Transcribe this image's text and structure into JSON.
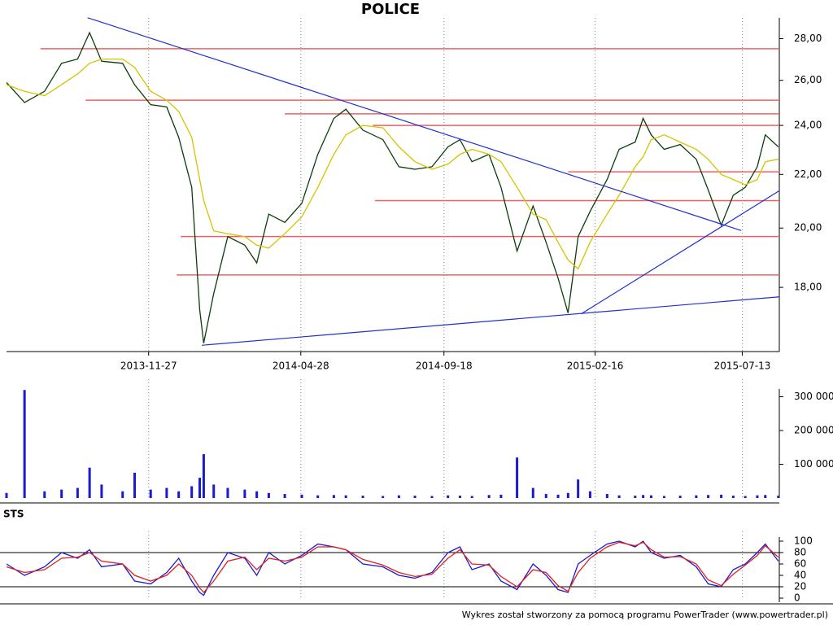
{
  "chart_data": [
    {
      "type": "line",
      "title": "POLICE",
      "log": true,
      "x": [
        "2013-07-08",
        "2013-07-26",
        "2013-08-15",
        "2013-09-01",
        "2013-09-17",
        "2013-09-29",
        "2013-10-11",
        "2013-11-01",
        "2013-11-13",
        "2013-11-29",
        "2013-12-15",
        "2013-12-27",
        "2014-01-09",
        "2014-01-17",
        "2014-01-21",
        "2014-01-31",
        "2014-02-14",
        "2014-03-03",
        "2014-03-15",
        "2014-03-27",
        "2014-04-12",
        "2014-04-29",
        "2014-05-15",
        "2014-05-31",
        "2014-06-12",
        "2014-06-29",
        "2014-07-19",
        "2014-08-04",
        "2014-08-20",
        "2014-09-06",
        "2014-09-22",
        "2014-10-04",
        "2014-10-16",
        "2014-11-02",
        "2014-11-14",
        "2014-11-30",
        "2014-12-16",
        "2014-12-29",
        "2015-01-10",
        "2015-01-20",
        "2015-01-30",
        "2015-02-11",
        "2015-02-28",
        "2015-03-12",
        "2015-03-28",
        "2015-04-05",
        "2015-04-13",
        "2015-04-26",
        "2015-05-12",
        "2015-05-28",
        "2015-06-09",
        "2015-06-22",
        "2015-07-04",
        "2015-07-16",
        "2015-07-28",
        "2015-08-05",
        "2015-08-18"
      ],
      "series": [
        {
          "color": "#0b3d0b",
          "values": [
            25.9,
            25.0,
            25.5,
            26.8,
            27.0,
            28.3,
            26.9,
            26.8,
            25.8,
            24.9,
            24.8,
            23.5,
            21.5,
            17.3,
            16.3,
            17.8,
            19.7,
            19.4,
            18.8,
            20.5,
            20.2,
            20.9,
            22.8,
            24.3,
            24.7,
            23.8,
            23.4,
            22.3,
            22.2,
            22.3,
            23.1,
            23.4,
            22.5,
            22.8,
            21.5,
            19.2,
            20.8,
            19.5,
            18.3,
            17.2,
            19.7,
            20.6,
            21.8,
            23.0,
            23.3,
            24.3,
            23.6,
            23.0,
            23.2,
            22.6,
            21.4,
            20.1,
            21.2,
            21.5,
            22.3,
            23.6,
            23.1
          ]
        },
        {
          "color": "#d4c400",
          "values": [
            25.8,
            25.5,
            25.3,
            25.8,
            26.3,
            26.8,
            27.0,
            27.0,
            26.6,
            25.5,
            25.1,
            24.6,
            23.5,
            21.8,
            21.0,
            19.9,
            19.8,
            19.7,
            19.4,
            19.3,
            19.8,
            20.4,
            21.5,
            22.8,
            23.6,
            24.0,
            23.9,
            23.1,
            22.5,
            22.2,
            22.4,
            22.8,
            23.0,
            22.8,
            22.5,
            21.5,
            20.5,
            20.3,
            19.5,
            18.9,
            18.6,
            19.5,
            20.5,
            21.2,
            22.3,
            22.7,
            23.4,
            23.6,
            23.3,
            23.0,
            22.6,
            22.0,
            21.8,
            21.6,
            21.8,
            22.5,
            22.6
          ]
        }
      ],
      "xlim": [
        "2013-07-08",
        "2015-08-19"
      ],
      "xticks": [
        "2013-11-27",
        "2014-04-28",
        "2014-09-18",
        "2015-02-16",
        "2015-07-13"
      ],
      "ylim": [
        16.06,
        29.05
      ],
      "yticks": [
        {
          "value": 18,
          "label": "18,00"
        },
        {
          "value": 20,
          "label": "20,00"
        },
        {
          "value": 22,
          "label": "22,00"
        },
        {
          "value": 24,
          "label": "24,00"
        },
        {
          "value": 26,
          "label": "26,00"
        },
        {
          "value": 28,
          "label": "28,00"
        }
      ],
      "hline_color": "#f06060",
      "hlines": [
        {
          "value": 27.5,
          "from": "2013-08-11"
        },
        {
          "value": 25.1,
          "from": "2013-09-25"
        },
        {
          "value": 24.5,
          "from": "2014-04-12"
        },
        {
          "value": 24.0,
          "from": "2014-07-09"
        },
        {
          "value": 22.1,
          "from": "2015-01-20"
        },
        {
          "value": 21.0,
          "from": "2014-07-11"
        },
        {
          "value": 19.7,
          "from": "2013-12-29"
        },
        {
          "value": 18.4,
          "from": "2013-12-25"
        }
      ],
      "trend_color": "#2030d0",
      "trendlines": [
        {
          "x": [
            "2013-09-27",
            "2015-07-12"
          ],
          "values": [
            29.06,
            19.91
          ]
        },
        {
          "x": [
            "2014-01-19",
            "2015-08-19"
          ],
          "values": [
            16.24,
            17.7
          ]
        },
        {
          "x": [
            "2015-02-02",
            "2015-08-19"
          ],
          "values": [
            17.17,
            21.37
          ]
        }
      ]
    },
    {
      "type": "bar",
      "color": "#1a1ad0",
      "values": [
        15000,
        320000,
        20000,
        25000,
        30000,
        90000,
        40000,
        20000,
        75000,
        25000,
        30000,
        20000,
        35000,
        60000,
        130000,
        40000,
        30000,
        25000,
        20000,
        15000,
        12000,
        10000,
        8000,
        9000,
        8000,
        7000,
        6000,
        8000,
        7000,
        6000,
        8000,
        7000,
        6000,
        9000,
        10000,
        120000,
        30000,
        12000,
        10000,
        15000,
        55000,
        20000,
        12000,
        8000,
        7000,
        9000,
        8000,
        6000,
        7000,
        8000,
        9000,
        10000,
        7000,
        6000,
        8000,
        9000,
        7000
      ],
      "ylim": [
        0,
        323000
      ],
      "yticks": [
        {
          "value": 100000,
          "label": "100 000"
        },
        {
          "value": 200000,
          "label": "200 000"
        },
        {
          "value": 300000,
          "label": "300 000"
        }
      ]
    },
    {
      "type": "line",
      "title": "STS",
      "series": [
        {
          "color": "#1a1ad0",
          "values": [
            60,
            40,
            55,
            80,
            70,
            85,
            55,
            60,
            30,
            25,
            45,
            70,
            30,
            10,
            5,
            40,
            80,
            70,
            40,
            80,
            60,
            75,
            95,
            90,
            85,
            60,
            55,
            40,
            35,
            45,
            80,
            90,
            50,
            60,
            30,
            15,
            60,
            40,
            15,
            10,
            60,
            75,
            95,
            100,
            90,
            100,
            80,
            70,
            75,
            55,
            25,
            20,
            50,
            60,
            80,
            95,
            65
          ]
        },
        {
          "color": "#e02020",
          "values": [
            55,
            45,
            50,
            70,
            72,
            80,
            65,
            60,
            40,
            30,
            40,
            60,
            40,
            18,
            10,
            30,
            65,
            72,
            50,
            70,
            65,
            72,
            90,
            90,
            85,
            68,
            58,
            45,
            38,
            42,
            70,
            85,
            60,
            58,
            38,
            20,
            50,
            45,
            22,
            12,
            45,
            70,
            90,
            98,
            92,
            98,
            85,
            72,
            73,
            60,
            32,
            22,
            42,
            58,
            75,
            92,
            72
          ]
        }
      ],
      "ylim": [
        0,
        100
      ],
      "yticks": [
        0,
        20,
        40,
        60,
        80,
        100
      ],
      "levels": [
        20,
        80
      ]
    }
  ],
  "footer": "Wykres został stworzony za pomocą programu PowerTrader (www.powertrader.pl)"
}
